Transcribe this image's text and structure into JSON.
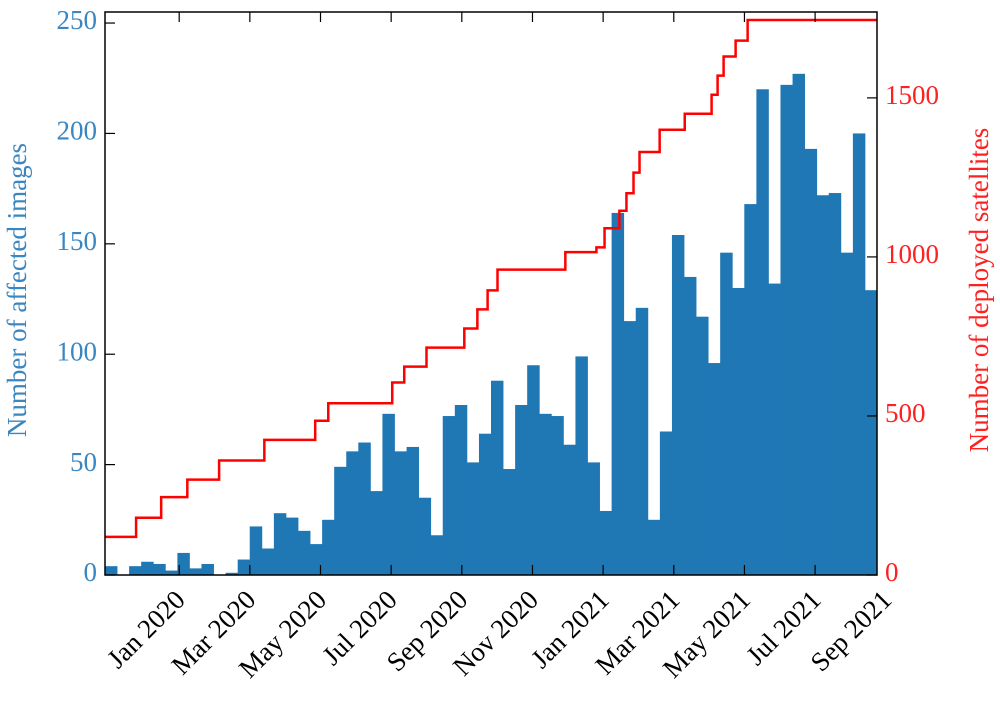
{
  "chart_data": {
    "type": "histogram",
    "y_label": "Number of affected images",
    "y2_label": "Number of deployed satellites",
    "bins": [
      -2.1,
      -1.759,
      -1.417,
      -1.076,
      -0.734,
      -0.393,
      -0.051,
      0.29,
      0.631,
      0.973,
      1.314,
      1.656,
      1.997,
      2.339,
      2.68,
      3.022,
      3.363,
      3.704,
      4.046,
      4.387,
      4.729,
      5.07,
      5.412,
      5.753,
      6.094,
      6.436,
      6.777,
      7.119,
      7.46,
      7.802,
      8.143,
      8.485,
      8.826,
      9.167,
      9.509,
      9.85,
      10.192,
      10.533,
      10.875,
      11.216,
      11.557,
      11.899,
      12.24,
      12.582,
      12.923,
      13.265,
      13.606,
      13.948,
      14.289,
      14.63,
      14.972,
      15.313,
      15.655,
      15.996,
      16.338,
      16.679,
      17.02,
      17.362,
      17.703,
      18.045,
      18.386,
      18.728,
      19.069,
      19.411,
      19.752
    ],
    "values": [
      4,
      0,
      4,
      6,
      5,
      2,
      10,
      3,
      5,
      0,
      1,
      7,
      22,
      12,
      28,
      26,
      20,
      14,
      25,
      49,
      56,
      60,
      38,
      73,
      56,
      58,
      35,
      18,
      72,
      77,
      51,
      64,
      88,
      48,
      77,
      95,
      73,
      72,
      59,
      99,
      51,
      29,
      164,
      115,
      121,
      25,
      65,
      154,
      135,
      117,
      96,
      146,
      130,
      168,
      220,
      132,
      222,
      227,
      193,
      172,
      173,
      146,
      200,
      129
    ],
    "color": "#1f77b4",
    "line": {
      "type": "step",
      "axis": "y2",
      "color": "#ff0000",
      "x": [
        -2.1,
        -1.22,
        -0.51,
        0.23,
        1.13,
        2.41,
        3.85,
        4.22,
        6.03,
        6.37,
        7.0,
        8.07,
        8.44,
        8.73,
        9.01,
        10.93,
        11.81,
        12.04,
        12.46,
        12.66,
        12.86,
        13.03,
        13.6,
        14.31,
        15.07,
        15.24,
        15.41,
        15.75,
        16.09,
        19.75
      ],
      "values": [
        120,
        180,
        245,
        300,
        360,
        425,
        485,
        540,
        605,
        655,
        715,
        775,
        835,
        895,
        960,
        1015,
        1030,
        1090,
        1145,
        1200,
        1265,
        1330,
        1400,
        1450,
        1510,
        1570,
        1630,
        1680,
        1745,
        1745
      ]
    },
    "xlim": [
      -2.1,
      19.752
    ],
    "xticks": [
      {
        "value": 0,
        "label": "Jan 2020"
      },
      {
        "value": 2,
        "label": "Mar 2020"
      },
      {
        "value": 4,
        "label": "May 2020"
      },
      {
        "value": 6,
        "label": "Jul 2020"
      },
      {
        "value": 8,
        "label": "Sep 2020"
      },
      {
        "value": 10,
        "label": "Nov 2020"
      },
      {
        "value": 12,
        "label": "Jan 2021"
      },
      {
        "value": 14,
        "label": "Mar 2021"
      },
      {
        "value": 16,
        "label": "May 2021"
      },
      {
        "value": 18,
        "label": "Jul 2021"
      },
      {
        "value": 20,
        "label": "Sep 2021"
      }
    ],
    "ylim": [
      0,
      255
    ],
    "yticks": [
      0,
      50,
      100,
      150,
      200,
      250
    ],
    "y_color": "#3a86c0",
    "y2lim": [
      0,
      1770
    ],
    "y2ticks": [
      0,
      500,
      1000,
      1500
    ],
    "y2_color": "#ff2020"
  }
}
